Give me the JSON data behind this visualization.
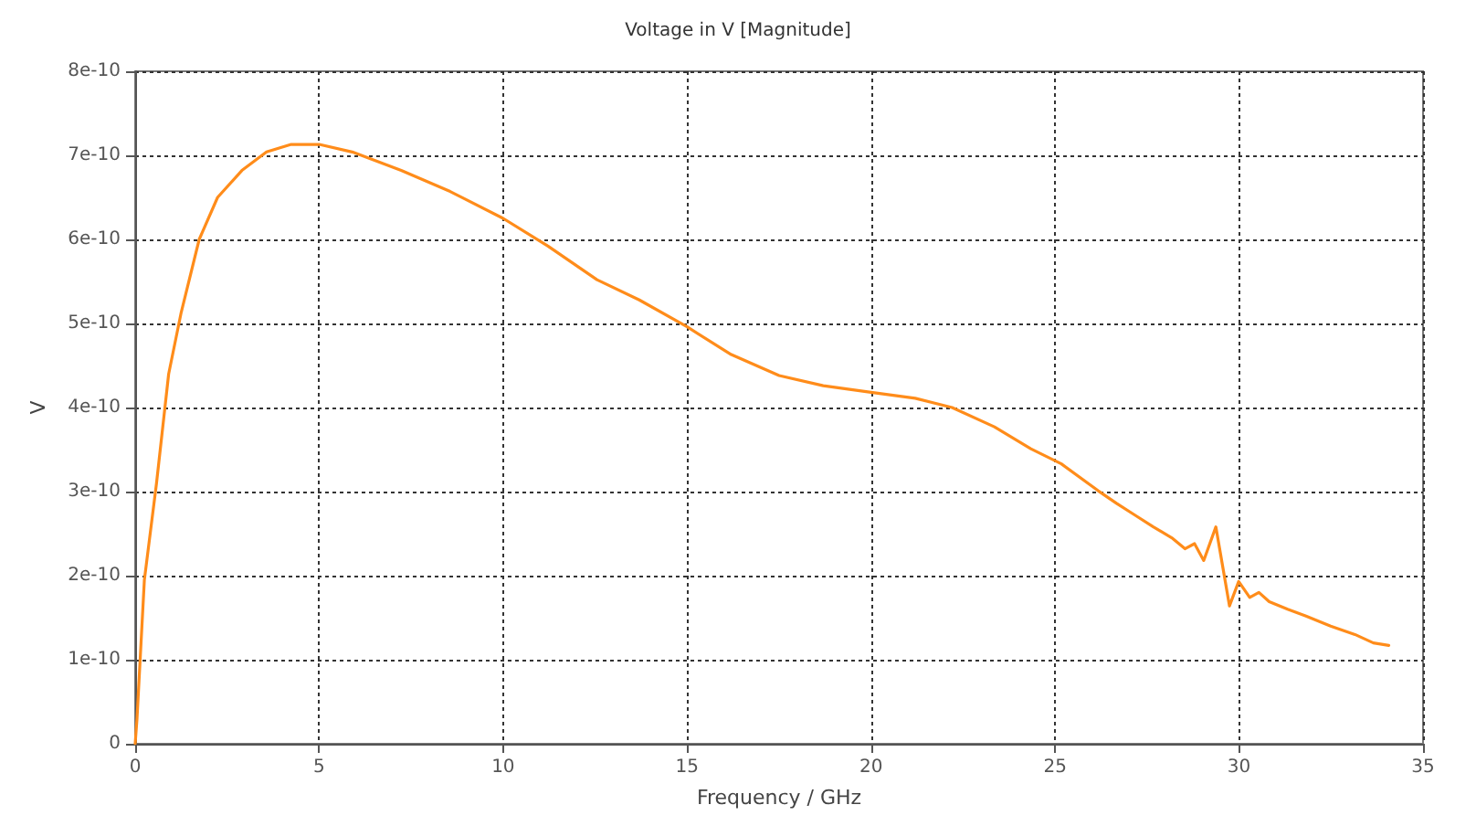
{
  "chart_data": {
    "type": "line",
    "title": "Voltage in V [Magnitude]",
    "xlabel": "Frequency / GHz",
    "ylabel": "V",
    "series": [
      {
        "color": "#ff8c1a",
        "x": [
          0,
          0.05,
          0.25,
          0.58,
          0.91,
          1.25,
          1.74,
          2.24,
          2.9,
          3.57,
          4.24,
          5.0,
          5.9,
          7.23,
          8.56,
          10,
          11.22,
          12.55,
          13.7,
          15,
          16.2,
          17.5,
          18.7,
          20,
          21.2,
          22.2,
          23.35,
          24.34,
          25.17,
          26.17,
          26.67,
          27.17,
          27.67,
          28.17,
          28.53,
          28.79,
          29.04,
          29.37,
          29.74,
          29.99,
          30.29,
          30.54,
          30.82,
          31.32,
          31.82,
          32.49,
          33.15,
          33.65,
          34.07
        ],
        "values": [
          0,
          3e-11,
          1.95e-10,
          3.1e-10,
          4.4e-10,
          5.13e-10,
          6e-10,
          6.5e-10,
          6.82e-10,
          7.04e-10,
          7.13e-10,
          7.13e-10,
          7.04e-10,
          6.82e-10,
          6.57e-10,
          6.25e-10,
          5.92e-10,
          5.52e-10,
          5.28e-10,
          4.96e-10,
          4.63e-10,
          4.38e-10,
          4.26e-10,
          4.18e-10,
          4.11e-10,
          4e-10,
          3.77e-10,
          3.51e-10,
          3.33e-10,
          3.01e-10,
          2.86e-10,
          2.72e-10,
          2.58e-10,
          2.45e-10,
          2.32e-10,
          2.38e-10,
          2.18e-10,
          2.58e-10,
          1.64e-10,
          1.93e-10,
          1.74e-10,
          1.8e-10,
          1.69e-10,
          1.6e-10,
          1.52e-10,
          1.4e-10,
          1.3e-10,
          1.2e-10,
          1.17e-10
        ]
      }
    ],
    "xlim": [
      0,
      35
    ],
    "xticks": [
      0,
      5,
      10,
      15,
      20,
      25,
      30,
      35
    ],
    "ylim": [
      0,
      8e-10
    ],
    "yticks": [
      0,
      {
        "value": 1e-10,
        "label": "1e-10"
      },
      {
        "value": 2e-10,
        "label": "2e-10"
      },
      {
        "value": 3e-10,
        "label": "3e-10"
      },
      {
        "value": 4e-10,
        "label": "4e-10"
      },
      {
        "value": 5e-10,
        "label": "5e-10"
      },
      {
        "value": 6e-10,
        "label": "6e-10"
      },
      {
        "value": 7e-10,
        "label": "7e-10"
      },
      {
        "value": 8e-10,
        "label": "8e-10"
      }
    ],
    "grid": true,
    "marker": "none",
    "line_style": "solid"
  }
}
